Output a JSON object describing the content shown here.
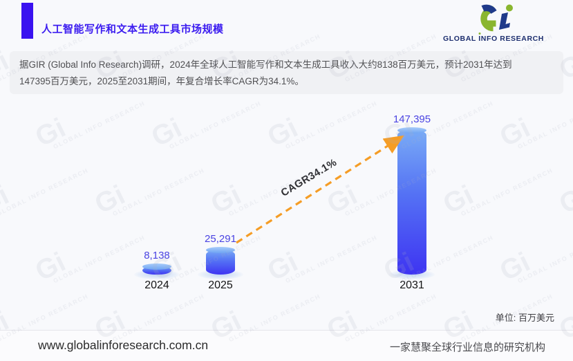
{
  "header": {
    "title": "人工智能写作和文本生成工具市场规模"
  },
  "logo": {
    "monogram": "Gi",
    "wordmark_part1": "GLOBAL ",
    "wordmark_i": "I",
    "wordmark_part2": "NFO RESEARCH",
    "green": "#8ab62f",
    "navy": "#1c2e6e"
  },
  "description": {
    "line1": "据GIR (Global Info Research)调研，2024年全球人工智能写作和文本生成工具收入大约8138百万美元，预计2031年达到",
    "line2": "147395百万美元，2025至2031期间，年复合增长率CAGR为34.1%。"
  },
  "chart_data": {
    "type": "bar",
    "title": "人工智能写作和文本生成工具市场规模",
    "categories": [
      "2024",
      "2025",
      "2031"
    ],
    "values": [
      8138,
      25291,
      147395
    ],
    "value_labels": [
      "8,138",
      "25,291",
      "147,395"
    ],
    "annotation": "CAGR34.1%",
    "unit_label": "单位: 百万美元",
    "xlabel": "",
    "ylabel": "",
    "ylim": [
      0,
      147395
    ],
    "grid": false,
    "legend": false,
    "bar_color_top": "#79abf6",
    "bar_color_bottom": "#3e34f2",
    "value_label_color": "#4a43e2",
    "arrow_color": "#f59d26"
  },
  "footer": {
    "website": "www.globalinforesearch.com.cn",
    "tagline": "一家慧聚全球行业信息的研究机构"
  },
  "watermark": {
    "monogram": "Gi",
    "text": "GLOBAL INFO RESEARCH"
  }
}
